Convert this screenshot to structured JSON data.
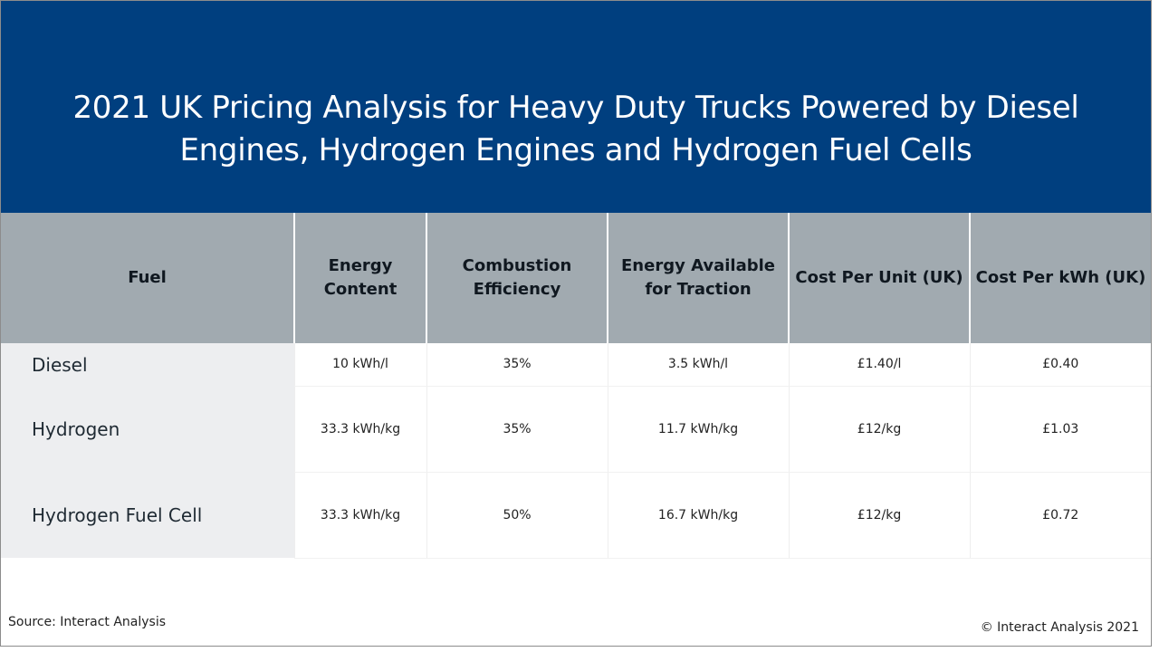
{
  "title": "2021 UK Pricing Analysis for Heavy Duty Trucks Powered by Diesel Engines, Hydrogen Engines and Hydrogen Fuel Cells",
  "table": {
    "headers": [
      "Fuel",
      "Energy Content",
      "Combustion Efficiency",
      "Energy Available for Traction",
      "Cost Per Unit (UK)",
      "Cost Per kWh (UK)"
    ],
    "rows": [
      [
        "Diesel",
        "10 kWh/l",
        "35%",
        "3.5 kWh/l",
        "£1.40/l",
        "£0.40"
      ],
      [
        "Hydrogen",
        "33.3 kWh/kg",
        "35%",
        "11.7 kWh/kg",
        "£12/kg",
        "£1.03"
      ],
      [
        "Hydrogen Fuel Cell",
        "33.3 kWh/kg",
        "50%",
        "16.7 kWh/kg",
        "£12/kg",
        "£0.72"
      ]
    ]
  },
  "footer": {
    "source": "Source: Interact Analysis",
    "copyright": "© Interact Analysis 2021"
  },
  "colors": {
    "title_band": "#003f7f",
    "header_fill": "#a1aab0",
    "fuel_column_fill": "#edeef0"
  }
}
